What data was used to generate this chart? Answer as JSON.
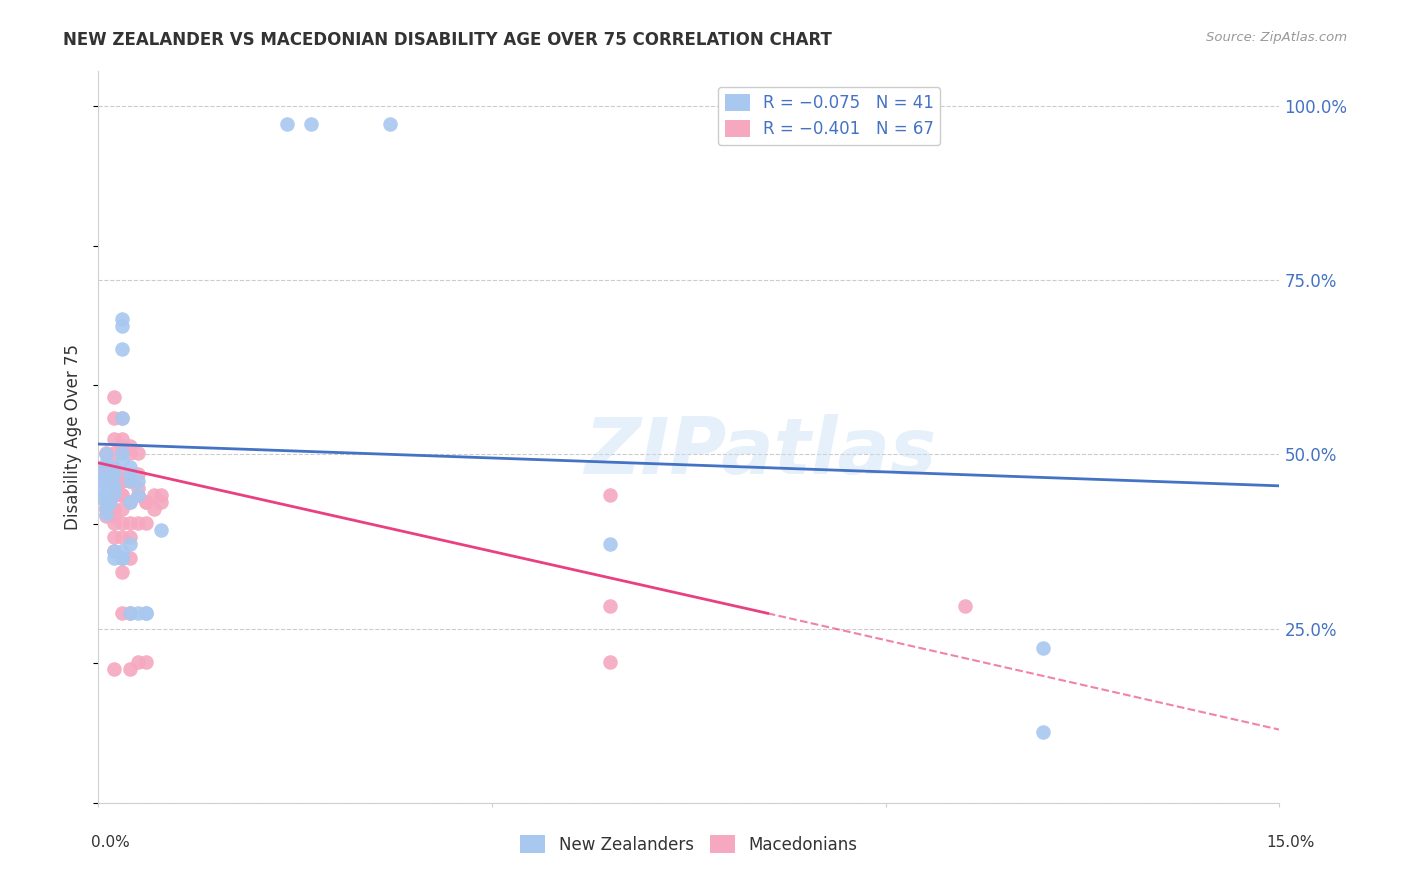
{
  "title": "NEW ZEALANDER VS MACEDONIAN DISABILITY AGE OVER 75 CORRELATION CHART",
  "source": "Source: ZipAtlas.com",
  "ylabel": "Disability Age Over 75",
  "yticks": [
    0.0,
    0.25,
    0.5,
    0.75,
    1.0
  ],
  "ytick_labels": [
    "",
    "25.0%",
    "50.0%",
    "75.0%",
    "100.0%"
  ],
  "xmin": 0.0,
  "xmax": 0.15,
  "ymin": 0.0,
  "ymax": 1.05,
  "nz_color": "#a8c8f0",
  "mac_color": "#f5a8c0",
  "nz_line_color": "#4472c4",
  "mac_line_color": "#e84080",
  "background": "#ffffff",
  "nz_points": [
    [
      0.0005,
      0.475
    ],
    [
      0.0005,
      0.462
    ],
    [
      0.0005,
      0.448
    ],
    [
      0.0005,
      0.438
    ],
    [
      0.001,
      0.425
    ],
    [
      0.001,
      0.445
    ],
    [
      0.001,
      0.415
    ],
    [
      0.001,
      0.5
    ],
    [
      0.001,
      0.488
    ],
    [
      0.0015,
      0.462
    ],
    [
      0.0015,
      0.432
    ],
    [
      0.002,
      0.445
    ],
    [
      0.002,
      0.472
    ],
    [
      0.002,
      0.455
    ],
    [
      0.002,
      0.48
    ],
    [
      0.002,
      0.362
    ],
    [
      0.002,
      0.352
    ],
    [
      0.003,
      0.695
    ],
    [
      0.003,
      0.685
    ],
    [
      0.003,
      0.652
    ],
    [
      0.003,
      0.552
    ],
    [
      0.003,
      0.502
    ],
    [
      0.003,
      0.492
    ],
    [
      0.003,
      0.362
    ],
    [
      0.003,
      0.352
    ],
    [
      0.003,
      0.352
    ],
    [
      0.004,
      0.482
    ],
    [
      0.004,
      0.472
    ],
    [
      0.004,
      0.462
    ],
    [
      0.004,
      0.432
    ],
    [
      0.004,
      0.372
    ],
    [
      0.004,
      0.272
    ],
    [
      0.005,
      0.462
    ],
    [
      0.005,
      0.442
    ],
    [
      0.005,
      0.272
    ],
    [
      0.006,
      0.272
    ],
    [
      0.006,
      0.272
    ],
    [
      0.008,
      0.392
    ],
    [
      0.024,
      0.975
    ],
    [
      0.027,
      0.975
    ],
    [
      0.037,
      0.975
    ],
    [
      0.065,
      0.372
    ],
    [
      0.12,
      0.222
    ],
    [
      0.12,
      0.102
    ]
  ],
  "mac_points": [
    [
      0.0005,
      0.478
    ],
    [
      0.0005,
      0.465
    ],
    [
      0.001,
      0.432
    ],
    [
      0.001,
      0.422
    ],
    [
      0.001,
      0.422
    ],
    [
      0.001,
      0.412
    ],
    [
      0.001,
      0.502
    ],
    [
      0.001,
      0.482
    ],
    [
      0.002,
      0.582
    ],
    [
      0.002,
      0.552
    ],
    [
      0.002,
      0.522
    ],
    [
      0.002,
      0.502
    ],
    [
      0.002,
      0.482
    ],
    [
      0.002,
      0.472
    ],
    [
      0.002,
      0.462
    ],
    [
      0.002,
      0.452
    ],
    [
      0.002,
      0.442
    ],
    [
      0.002,
      0.442
    ],
    [
      0.002,
      0.422
    ],
    [
      0.002,
      0.412
    ],
    [
      0.002,
      0.402
    ],
    [
      0.002,
      0.382
    ],
    [
      0.002,
      0.362
    ],
    [
      0.002,
      0.192
    ],
    [
      0.003,
      0.552
    ],
    [
      0.003,
      0.522
    ],
    [
      0.003,
      0.512
    ],
    [
      0.003,
      0.502
    ],
    [
      0.003,
      0.472
    ],
    [
      0.003,
      0.462
    ],
    [
      0.003,
      0.462
    ],
    [
      0.003,
      0.442
    ],
    [
      0.003,
      0.442
    ],
    [
      0.003,
      0.422
    ],
    [
      0.003,
      0.402
    ],
    [
      0.003,
      0.382
    ],
    [
      0.003,
      0.352
    ],
    [
      0.003,
      0.352
    ],
    [
      0.003,
      0.332
    ],
    [
      0.003,
      0.272
    ],
    [
      0.004,
      0.512
    ],
    [
      0.004,
      0.502
    ],
    [
      0.004,
      0.462
    ],
    [
      0.004,
      0.432
    ],
    [
      0.004,
      0.402
    ],
    [
      0.004,
      0.382
    ],
    [
      0.004,
      0.352
    ],
    [
      0.004,
      0.272
    ],
    [
      0.004,
      0.192
    ],
    [
      0.005,
      0.502
    ],
    [
      0.005,
      0.472
    ],
    [
      0.005,
      0.452
    ],
    [
      0.005,
      0.442
    ],
    [
      0.005,
      0.402
    ],
    [
      0.005,
      0.202
    ],
    [
      0.006,
      0.432
    ],
    [
      0.006,
      0.432
    ],
    [
      0.006,
      0.402
    ],
    [
      0.006,
      0.202
    ],
    [
      0.007,
      0.442
    ],
    [
      0.007,
      0.422
    ],
    [
      0.008,
      0.442
    ],
    [
      0.008,
      0.432
    ],
    [
      0.065,
      0.442
    ],
    [
      0.065,
      0.282
    ],
    [
      0.065,
      0.202
    ],
    [
      0.11,
      0.282
    ]
  ],
  "nz_line": {
    "x0": 0.0,
    "y0": 0.515,
    "x1": 0.15,
    "y1": 0.455
  },
  "mac_line_solid": {
    "x0": 0.0,
    "y0": 0.488,
    "x1": 0.085,
    "y1": 0.272
  },
  "mac_line_dash": {
    "x0": 0.085,
    "y0": 0.272,
    "x1": 0.15,
    "y1": 0.105
  }
}
